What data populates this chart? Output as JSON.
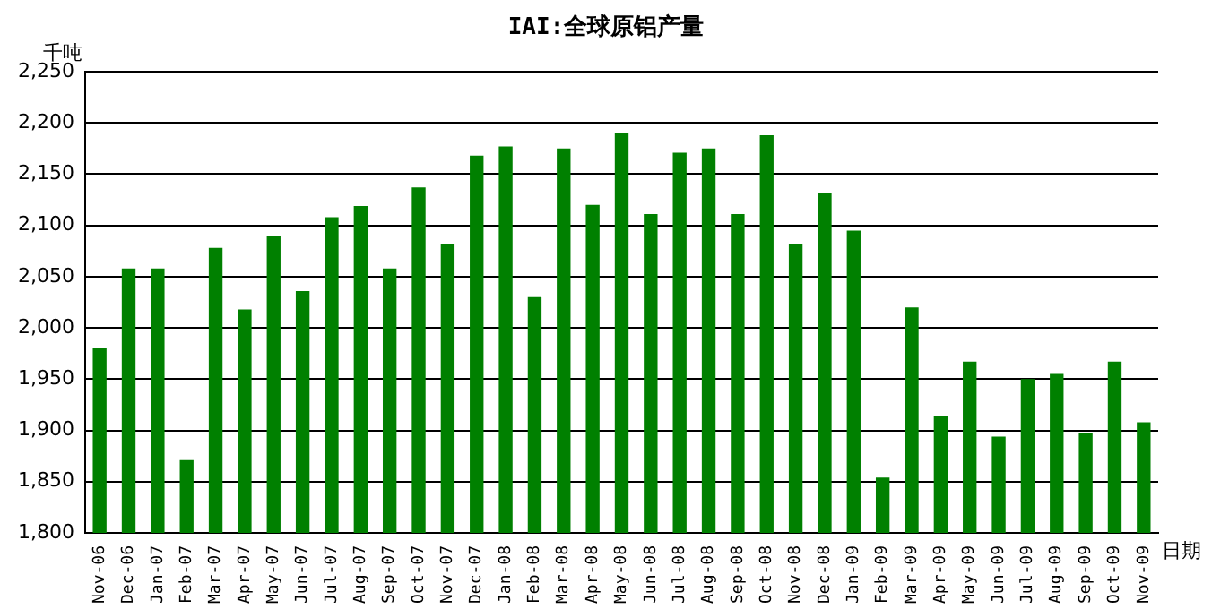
{
  "chart_data": {
    "type": "bar",
    "title": "IAI:全球原铝产量",
    "ylabel": "千吨",
    "xlabel": "日期",
    "categories": [
      "Nov-06",
      "Dec-06",
      "Jan-07",
      "Feb-07",
      "Mar-07",
      "Apr-07",
      "May-07",
      "Jun-07",
      "Jul-07",
      "Aug-07",
      "Sep-07",
      "Oct-07",
      "Nov-07",
      "Dec-07",
      "Jan-08",
      "Feb-08",
      "Mar-08",
      "Apr-08",
      "May-08",
      "Jun-08",
      "Jul-08",
      "Aug-08",
      "Sep-08",
      "Oct-08",
      "Nov-08",
      "Dec-08",
      "Jan-09",
      "Feb-09",
      "Mar-09",
      "Apr-09",
      "May-09",
      "Jun-09",
      "Jul-09",
      "Aug-09",
      "Sep-09",
      "Oct-09",
      "Nov-09"
    ],
    "values": [
      1980,
      2058,
      2058,
      1871,
      2078,
      2018,
      2090,
      2036,
      2108,
      2119,
      2058,
      2137,
      2082,
      2168,
      2177,
      2030,
      2175,
      2120,
      2190,
      2111,
      2171,
      2175,
      2111,
      2188,
      2082,
      2132,
      2095,
      1854,
      2020,
      1914,
      1967,
      1894,
      1950,
      1955,
      1897,
      1967,
      1908
    ],
    "color": "#008000",
    "ylim": [
      1800,
      2250
    ],
    "yticks": [
      {
        "value": 1800,
        "label": "1,800"
      },
      {
        "value": 1850,
        "label": "1,850"
      },
      {
        "value": 1900,
        "label": "1,900"
      },
      {
        "value": 1950,
        "label": "1,950"
      },
      {
        "value": 2000,
        "label": "2,000"
      },
      {
        "value": 2050,
        "label": "2,050"
      },
      {
        "value": 2100,
        "label": "2,100"
      },
      {
        "value": 2150,
        "label": "2,150"
      },
      {
        "value": 2200,
        "label": "2,200"
      },
      {
        "value": 2250,
        "label": "2,250"
      }
    ],
    "grid": "y",
    "legend": false
  }
}
